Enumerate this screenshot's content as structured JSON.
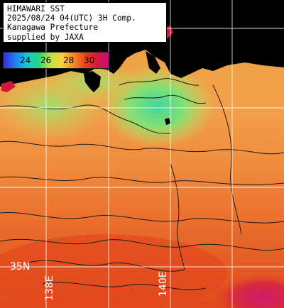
{
  "title": {
    "line1": "HIMAWARI SST",
    "line2": "2025/08/24 04(UTC) 3H Comp.",
    "line3": "Kanagawa Prefecture",
    "line4": "supplied by JAXA"
  },
  "colorbar": {
    "ticks": [
      "24",
      "26",
      "28",
      "30"
    ],
    "colors": [
      "#3b2be0",
      "#1f7ff0",
      "#19c8d8",
      "#27d47c",
      "#bfe33a",
      "#f7d23a",
      "#f48a28",
      "#e8421c",
      "#d4183c",
      "#c4127a"
    ]
  },
  "grid_labels": {
    "lat": "35N",
    "lon1": "138E",
    "lon2": "140E"
  },
  "colors": {
    "land": "#000000",
    "grid": "#ffffff",
    "contour": "#1a1a1a",
    "sea_warm": "#e8581f",
    "sea_mid": "#f2a445",
    "sea_cool": "#6fe07a"
  }
}
